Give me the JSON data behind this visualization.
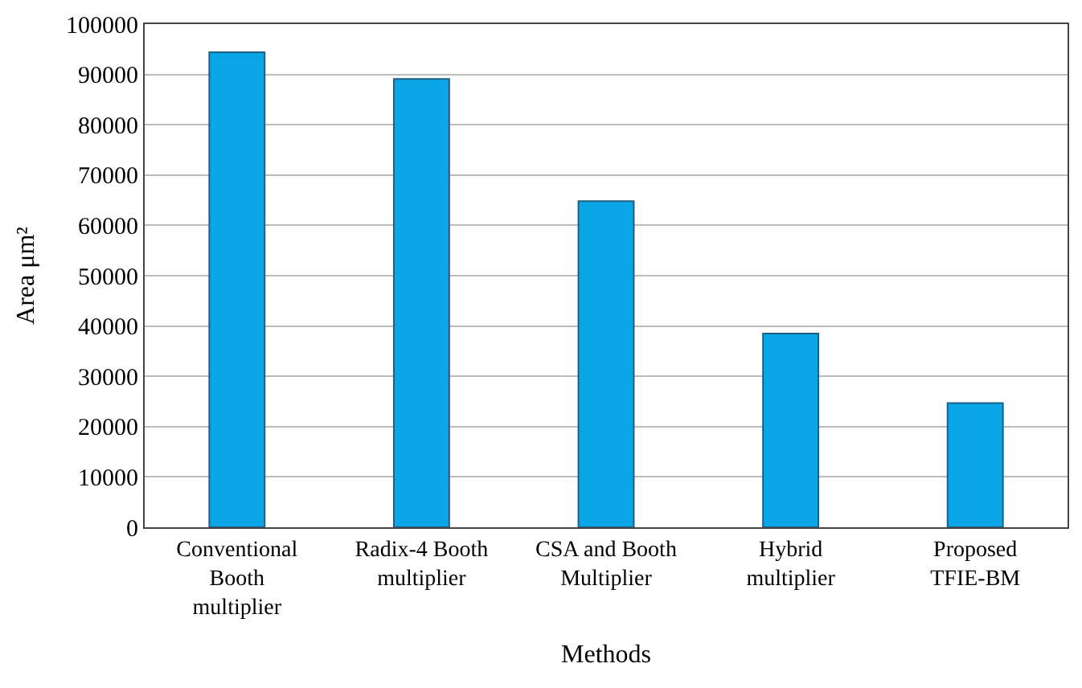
{
  "chart_data": {
    "type": "bar",
    "categories": [
      "Conventional\nBooth\nmultiplier",
      "Radix-4 Booth\nmultiplier",
      "CSA and Booth\nMultiplier",
      "Hybrid\nmultiplier",
      "Proposed\nTFIE-BM"
    ],
    "values": [
      94400,
      89100,
      64800,
      38500,
      24700
    ],
    "color": "#0aa6e6",
    "xlabel": "Methods",
    "ylabel": "Area μm²",
    "ylim": [
      0,
      100000
    ],
    "yticks": [
      0,
      10000,
      20000,
      30000,
      40000,
      50000,
      60000,
      70000,
      80000,
      90000,
      100000
    ],
    "grid": "y",
    "legend": false
  }
}
